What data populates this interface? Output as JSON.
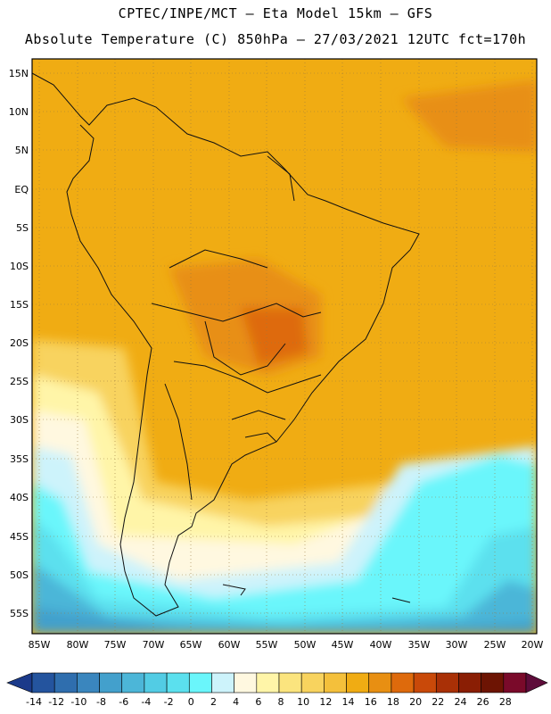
{
  "header": {
    "line1": "CPTEC/INPE/MCT –  Eta Model 15km – GFS",
    "line2": "Absolute Temperature (C) 850hPa – 27/03/2021 12UTC fct=170h"
  },
  "map": {
    "lat_labels": [
      "15N",
      "10N",
      "5N",
      "EQ",
      "5S",
      "10S",
      "15S",
      "20S",
      "25S",
      "30S",
      "35S",
      "40S",
      "45S",
      "50S",
      "55S"
    ],
    "lon_labels": [
      "85W",
      "80W",
      "75W",
      "70W",
      "65W",
      "60W",
      "55W",
      "50W",
      "45W",
      "40W",
      "35W",
      "30W",
      "25W",
      "20W"
    ]
  },
  "colorbar": {
    "labels": [
      "-14",
      "-12",
      "-10",
      "-8",
      "-6",
      "-4",
      "-2",
      "0",
      "2",
      "4",
      "6",
      "8",
      "10",
      "12",
      "14",
      "16",
      "18",
      "20",
      "22",
      "24",
      "26",
      "28"
    ],
    "colors": [
      "#1b3a8a",
      "#24549e",
      "#2f6eae",
      "#3a86be",
      "#43a0cc",
      "#4cb6d8",
      "#52cce4",
      "#5be0ee",
      "#6af6fb",
      "#cdf3fb",
      "#fff8e0",
      "#fff5a8",
      "#fbe47e",
      "#f8d35e",
      "#f4c03b",
      "#f0ac13",
      "#e88f12",
      "#de6a0c",
      "#c94909",
      "#a93006",
      "#8a1e04",
      "#6d1403",
      "#7a0a2a",
      "#5e0c3a"
    ]
  }
}
